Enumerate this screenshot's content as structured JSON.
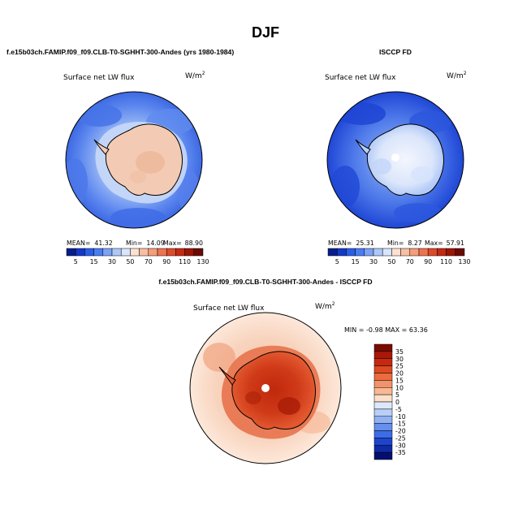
{
  "figure": {
    "title": "DJF",
    "bottom_title": "f.e15b03ch.FAMIP.f09_f09.CLB-T0-SGHHT-300-Andes - ISCCP FD",
    "colors": {
      "ice_model": "#f3cbb4",
      "ice_obs": "#e9f0fd",
      "diff_core": "#b8250a",
      "pole_hole": "#ffffff"
    }
  },
  "panels": [
    {
      "id": "model",
      "header": "f.e15b03ch.FAMIP.f09_f09.CLB-T0-SGHHT-300-Andes (yrs 1980-1984)",
      "variable": "Surface net LW flux",
      "units": "W/m",
      "units_sup": "2",
      "stats": {
        "mean_label": "MEAN=",
        "mean": "41.32",
        "min_label": "Min=",
        "min": "14.09",
        "max_label": "Max=",
        "max": "88.90"
      }
    },
    {
      "id": "obs",
      "header": "ISCCP FD",
      "variable": "Surface net LW flux",
      "units": "W/m",
      "units_sup": "2",
      "stats": {
        "mean_label": "MEAN=",
        "mean": "25.31",
        "min_label": "Min=",
        "min": "8.27",
        "max_label": "Max=",
        "max": "57.91"
      }
    },
    {
      "id": "diff",
      "variable": "Surface net LW flux",
      "units": "W/m",
      "units_sup": "2",
      "minmax": "MIN =  -0.98 MAX =  63.36"
    }
  ],
  "colorbars": {
    "top": {
      "labels": [
        "5",
        "15",
        "30",
        "50",
        "70",
        "90",
        "110",
        "130"
      ],
      "colors": [
        "#081d8c",
        "#1438c8",
        "#2a5ee8",
        "#4b7df2",
        "#7ea3f5",
        "#aec8f8",
        "#d8e5fb",
        "#fde1d2",
        "#f9bfa2",
        "#f59e7a",
        "#ee7450",
        "#de4b2a",
        "#c42a12",
        "#9c1606",
        "#6b0a02"
      ]
    },
    "diff": {
      "labels": [
        "35",
        "30",
        "25",
        "20",
        "15",
        "10",
        "5",
        "0",
        "-5",
        "-10",
        "-15",
        "-20",
        "-25",
        "-30",
        "-35"
      ],
      "colors": [
        "#7a0b02",
        "#a81808",
        "#c7290e",
        "#dd4a22",
        "#ec6c3f",
        "#f4926a",
        "#f9b894",
        "#fde0cb",
        "#dde8fb",
        "#b9cff8",
        "#91b1f5",
        "#6690f0",
        "#3e6ce6",
        "#1d45cc",
        "#0f2aa6",
        "#050e70"
      ]
    }
  }
}
